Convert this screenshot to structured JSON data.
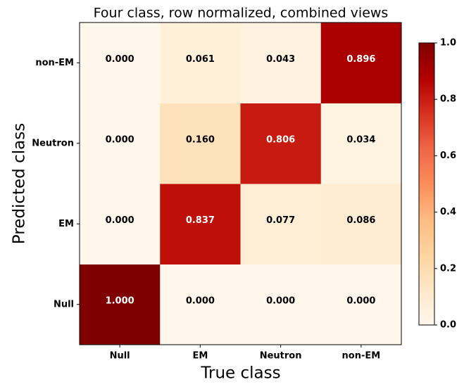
{
  "chart_data": {
    "type": "heatmap",
    "title": "Four class, row normalized, combined views",
    "xlabel": "True class",
    "ylabel": "Predicted class",
    "x_categories": [
      "Null",
      "EM",
      "Neutron",
      "non-EM"
    ],
    "y_categories": [
      "Null",
      "EM",
      "Neutron",
      "non-EM"
    ],
    "values": [
      [
        1.0,
        0.0,
        0.0,
        0.0
      ],
      [
        0.0,
        0.837,
        0.077,
        0.086
      ],
      [
        0.0,
        0.16,
        0.806,
        0.034
      ],
      [
        0.0,
        0.061,
        0.043,
        0.896
      ]
    ],
    "value_labels": [
      [
        "1.000",
        "0.000",
        "0.000",
        "0.000"
      ],
      [
        "0.000",
        "0.837",
        "0.077",
        "0.086"
      ],
      [
        "0.000",
        "0.160",
        "0.806",
        "0.034"
      ],
      [
        "0.000",
        "0.061",
        "0.043",
        "0.896"
      ]
    ],
    "colormap": [
      "#fff7ec",
      "#fee8c8",
      "#fdd49e",
      "#fdbb84",
      "#fc8d59",
      "#ef6548",
      "#d7301f",
      "#b30000",
      "#7f0000"
    ],
    "colorbar_lim": [
      0,
      1
    ],
    "colorbar_ticks": [
      {
        "value": 0,
        "label": "0.0"
      },
      0.2,
      0.4,
      0.6,
      0.8,
      {
        "value": 1,
        "label": "1.0"
      }
    ]
  }
}
